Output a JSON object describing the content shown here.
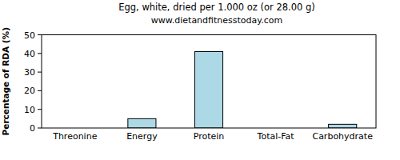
{
  "chart_data": {
    "type": "bar",
    "title": "Egg, white, dried per 1.000 oz (or 28.00 g)",
    "subtitle": "www.dietandfitnesstoday.com",
    "y_label": "Percentage of RDA (%)",
    "categories": [
      "Threonine",
      "Energy",
      "Protein",
      "Total-Fat",
      "Carbohydrate"
    ],
    "values": [
      0,
      5,
      41,
      0,
      2
    ],
    "color": "#add8e6",
    "ylim": [
      0,
      50
    ],
    "yticks": [
      0,
      10,
      20,
      30,
      40,
      50
    ],
    "grid": false
  }
}
